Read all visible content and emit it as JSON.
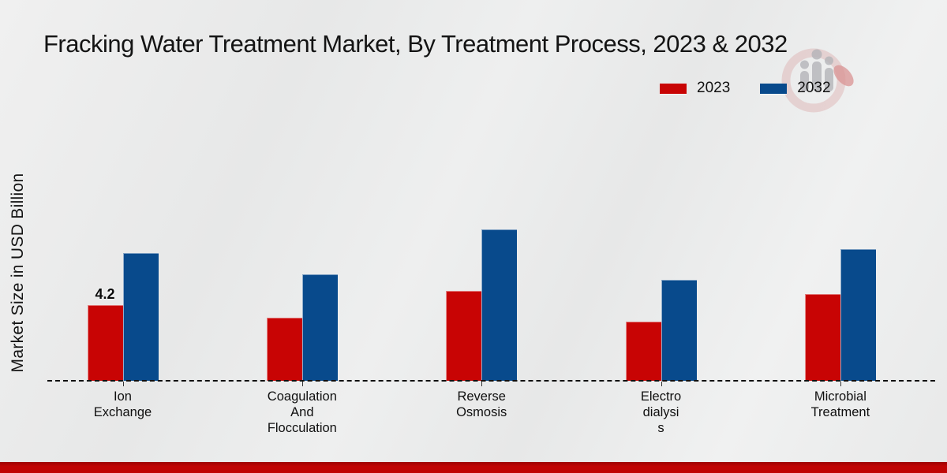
{
  "title": "Fracking Water Treatment Market, By Treatment Process, 2023 & 2032",
  "y_axis_label": "Market Size in USD Billion",
  "legend": {
    "items": [
      {
        "label": "2023",
        "color": "#c80404"
      },
      {
        "label": "2032",
        "color": "#084a8c"
      }
    ]
  },
  "chart_data": {
    "type": "bar",
    "title": "Fracking Water Treatment Market, By Treatment Process, 2023 & 2032",
    "ylabel": "Market Size in USD Billion",
    "ylim": [
      0,
      9
    ],
    "grid": false,
    "legend_position": "top-right",
    "baseline_style": "dashed",
    "categories": [
      "Ion Exchange",
      "Coagulation And Flocculation",
      "Reverse Osmosis",
      "Electro dialysis",
      "Microbial Treatment"
    ],
    "category_label_lines": [
      [
        "Ion",
        "Exchange"
      ],
      [
        "Coagulation",
        "And",
        "Flocculation"
      ],
      [
        "Reverse",
        "Osmosis"
      ],
      [
        "Electro",
        "dialysi",
        "s"
      ],
      [
        "Microbial",
        "Treatment"
      ]
    ],
    "series": [
      {
        "name": "2023",
        "color": "#c80404",
        "values": [
          4.2,
          3.5,
          5.0,
          3.3,
          4.8
        ]
      },
      {
        "name": "2032",
        "color": "#084a8c",
        "values": [
          7.1,
          5.9,
          8.4,
          5.6,
          7.3
        ]
      }
    ],
    "annotations": [
      {
        "series": "2023",
        "category_index": 0,
        "text": "4.2"
      }
    ]
  },
  "watermark": {
    "icon": "bar-chart-magnifier-logo"
  },
  "footer": {
    "color": "#c00404"
  }
}
